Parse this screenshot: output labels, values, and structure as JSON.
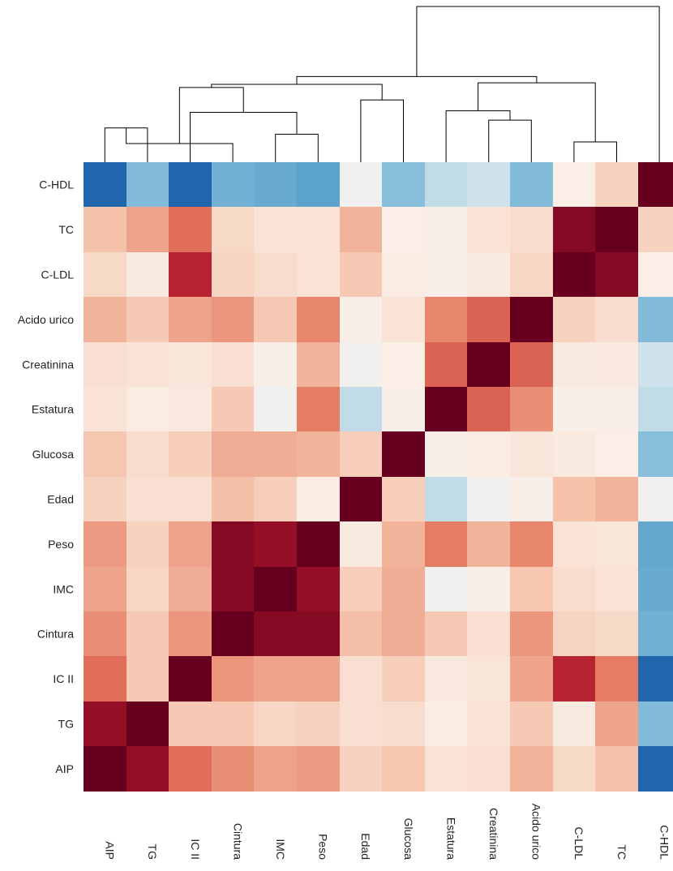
{
  "chart_data": {
    "type": "heatmap",
    "title": "",
    "xlabel": "",
    "ylabel": "",
    "col_labels": [
      "AIP",
      "TG",
      "IC II",
      "Cintura",
      "IMC",
      "Peso",
      "Edad",
      "Glucosa",
      "Estatura",
      "Creatinina",
      "Acido urico",
      "C-LDL",
      "TC",
      "C-HDL"
    ],
    "row_labels": [
      "C-HDL",
      "TC",
      "C-LDL",
      "Acido urico",
      "Creatinina",
      "Estatura",
      "Glucosa",
      "Edad",
      "Peso",
      "IMC",
      "Cintura",
      "IC II",
      "TG",
      "AIP"
    ],
    "value_range": [
      -1,
      1
    ],
    "colormap": "RdBu_r",
    "values": [
      [
        -0.75,
        -0.3,
        -0.75,
        -0.35,
        -0.38,
        -0.42,
        -0.05,
        -0.28,
        -0.15,
        -0.12,
        -0.3,
        0.05,
        0.18,
        1.0
      ],
      [
        0.25,
        0.35,
        0.52,
        0.15,
        0.1,
        0.1,
        0.3,
        0.05,
        0.03,
        0.1,
        0.13,
        0.9,
        1.0,
        0.18
      ],
      [
        0.15,
        0.07,
        0.72,
        0.17,
        0.13,
        0.1,
        0.22,
        0.06,
        0.03,
        0.07,
        0.16,
        1.0,
        0.9,
        0.05
      ],
      [
        0.3,
        0.22,
        0.35,
        0.4,
        0.22,
        0.45,
        0.03,
        0.1,
        0.45,
        0.55,
        1.0,
        0.18,
        0.13,
        -0.3
      ],
      [
        0.12,
        0.1,
        0.09,
        0.12,
        0.03,
        0.3,
        -0.03,
        0.05,
        0.55,
        1.0,
        0.55,
        0.07,
        0.08,
        -0.12
      ],
      [
        0.1,
        0.06,
        0.08,
        0.22,
        -0.04,
        0.48,
        -0.15,
        0.03,
        1.0,
        0.55,
        0.42,
        0.03,
        0.04,
        -0.15
      ],
      [
        0.23,
        0.13,
        0.2,
        0.32,
        0.32,
        0.3,
        0.2,
        1.0,
        0.04,
        0.06,
        0.09,
        0.07,
        0.05,
        -0.28
      ],
      [
        0.18,
        0.12,
        0.12,
        0.26,
        0.2,
        0.06,
        1.0,
        0.2,
        -0.15,
        -0.04,
        0.03,
        0.25,
        0.3,
        -0.05
      ],
      [
        0.38,
        0.18,
        0.35,
        0.9,
        0.85,
        1.0,
        0.07,
        0.3,
        0.48,
        0.3,
        0.45,
        0.1,
        0.09,
        -0.4
      ],
      [
        0.35,
        0.16,
        0.32,
        0.9,
        1.0,
        0.85,
        0.2,
        0.32,
        -0.04,
        0.03,
        0.23,
        0.13,
        0.1,
        -0.38
      ],
      [
        0.42,
        0.22,
        0.4,
        1.0,
        0.9,
        0.9,
        0.26,
        0.32,
        0.22,
        0.12,
        0.4,
        0.17,
        0.15,
        -0.35
      ],
      [
        0.52,
        0.22,
        1.0,
        0.4,
        0.35,
        0.35,
        0.12,
        0.2,
        0.08,
        0.09,
        0.35,
        0.72,
        0.48,
        -0.75
      ],
      [
        0.85,
        1.0,
        0.22,
        0.22,
        0.16,
        0.18,
        0.12,
        0.13,
        0.06,
        0.1,
        0.22,
        0.07,
        0.35,
        -0.3
      ],
      [
        1.0,
        0.85,
        0.52,
        0.42,
        0.35,
        0.38,
        0.18,
        0.23,
        0.1,
        0.12,
        0.3,
        0.15,
        0.25,
        -0.75
      ]
    ],
    "dendrogram": [
      {
        "left": 0,
        "right": 1,
        "height": 0.22
      },
      {
        "left": 4,
        "right": 5,
        "height": 0.18
      },
      {
        "left": 3,
        "right": 14,
        "height": 0.12
      },
      {
        "left": 2,
        "right": 15,
        "height": 0.32
      },
      {
        "left": 9,
        "right": 10,
        "height": 0.27
      },
      {
        "left": 8,
        "right": 18,
        "height": 0.33
      },
      {
        "left": 6,
        "right": 7,
        "height": 0.4
      },
      {
        "left": 11,
        "right": 12,
        "height": 0.13
      },
      {
        "left": 16,
        "right": 17,
        "height": 0.48
      },
      {
        "left": 20,
        "right": 22,
        "height": 0.5
      },
      {
        "left": 19,
        "right": 21,
        "height": 0.51
      },
      {
        "left": 23,
        "right": 24,
        "height": 0.55
      },
      {
        "left": 25,
        "right": 13,
        "height": 1.0
      }
    ]
  }
}
